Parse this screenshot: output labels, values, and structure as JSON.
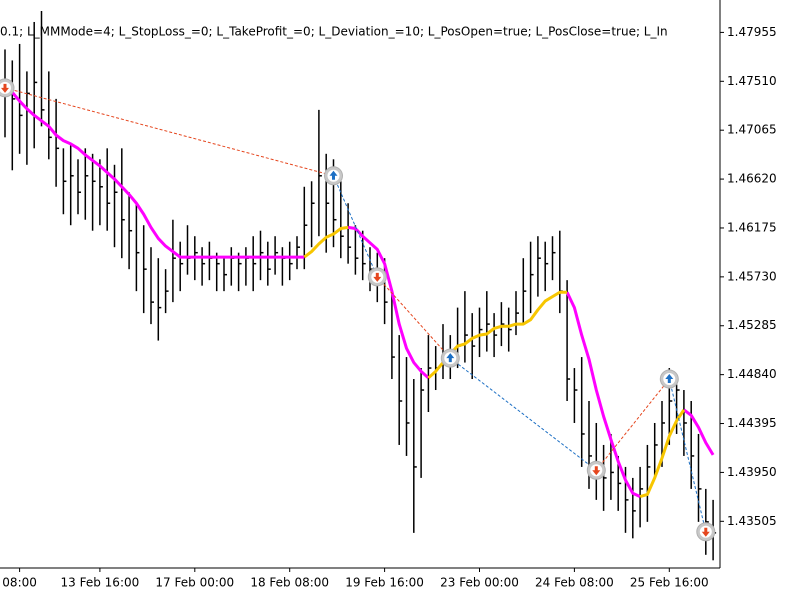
{
  "chart_data": {
    "type": "ohlc",
    "title": "0.1; L_MMMode=4; L_StopLoss_=0; L_TakeProfit_=0; L_Deviation_=10; L_PosOpen=true; L_PosClose=true; L_In",
    "bar_color": "#000000",
    "sell_color": "#e5461e",
    "buy_color": "#1c6fc4",
    "ylim": [
      1.4308,
      1.4825
    ],
    "yticks": [
      1.47955,
      {
        "value": 1.4751,
        "label": "1.47510"
      },
      1.47065,
      {
        "value": 1.4662,
        "label": "1.46620"
      },
      1.46175,
      {
        "value": 1.4573,
        "label": "1.45730"
      },
      1.45285,
      {
        "value": 1.4484,
        "label": "1.44840"
      },
      1.44395,
      {
        "value": 1.4395,
        "label": "1.43950"
      },
      1.43505
    ],
    "categories": [
      null,
      null,
      "08:00",
      null,
      null,
      null,
      null,
      null,
      null,
      null,
      null,
      null,
      null,
      "13 Feb 16:00",
      null,
      null,
      null,
      null,
      null,
      null,
      null,
      null,
      null,
      null,
      null,
      null,
      "17 Feb 00:00",
      null,
      null,
      null,
      null,
      null,
      null,
      null,
      null,
      null,
      null,
      null,
      null,
      "18 Feb 08:00",
      null,
      null,
      null,
      null,
      null,
      null,
      null,
      null,
      null,
      null,
      null,
      null,
      "19 Feb 16:00",
      null,
      null,
      null,
      null,
      null,
      null,
      null,
      null,
      null,
      null,
      null,
      null,
      "23 Feb 00:00",
      null,
      null,
      null,
      null,
      null,
      null,
      null,
      null,
      null,
      null,
      null,
      null,
      "24 Feb 08:00",
      null,
      null,
      null,
      null,
      null,
      null,
      null,
      null,
      null,
      null,
      null,
      null,
      "25 Feb 16:00",
      null,
      null,
      null,
      null,
      null,
      null
    ],
    "high": [
      1.478,
      1.477,
      1.4785,
      1.476,
      1.4805,
      1.4815,
      1.476,
      1.4735,
      1.469,
      1.4695,
      1.468,
      1.469,
      1.4685,
      1.468,
      1.469,
      1.4675,
      1.469,
      1.465,
      1.464,
      1.462,
      1.46,
      1.459,
      1.458,
      1.4625,
      1.4605,
      1.462,
      1.461,
      1.46,
      1.4605,
      1.4595,
      1.459,
      1.46,
      1.4595,
      1.46,
      1.461,
      1.4615,
      1.4605,
      1.461,
      1.46,
      1.4605,
      1.461,
      1.4655,
      1.466,
      1.4725,
      1.4685,
      1.468,
      1.466,
      1.464,
      1.462,
      1.4615,
      1.46,
      1.4595,
      1.459,
      1.456,
      1.452,
      1.45,
      1.448,
      1.449,
      1.452,
      1.451,
      1.453,
      1.452,
      1.4545,
      1.456,
      1.454,
      1.4545,
      1.456,
      1.454,
      1.455,
      1.4545,
      1.456,
      1.459,
      1.4605,
      1.461,
      1.4605,
      1.461,
      1.4615,
      1.457,
      1.449,
      1.45,
      1.446,
      1.444,
      1.442,
      1.443,
      1.441,
      1.44,
      1.439,
      1.44,
      1.442,
      1.444,
      1.446,
      1.449,
      1.4475,
      1.447,
      1.446,
      1.443,
      1.438,
      1.437
    ],
    "low": [
      1.47,
      1.467,
      1.4685,
      1.4675,
      1.469,
      1.471,
      1.468,
      1.4655,
      1.463,
      1.462,
      1.463,
      1.4625,
      1.4615,
      1.462,
      1.4615,
      1.46,
      1.459,
      1.458,
      1.456,
      1.454,
      1.453,
      1.4515,
      1.454,
      1.455,
      1.456,
      1.4575,
      1.457,
      1.4565,
      1.457,
      1.456,
      1.456,
      1.4565,
      1.456,
      1.4565,
      1.456,
      1.457,
      1.4565,
      1.4575,
      1.4565,
      1.457,
      1.458,
      1.458,
      1.46,
      1.461,
      1.4595,
      1.46,
      1.459,
      1.4585,
      1.4575,
      1.457,
      1.456,
      1.455,
      1.453,
      1.448,
      1.442,
      1.441,
      1.434,
      1.439,
      1.445,
      1.447,
      1.448,
      1.448,
      1.449,
      1.4495,
      1.448,
      1.45,
      1.4505,
      1.45,
      1.451,
      1.4505,
      1.452,
      1.453,
      1.454,
      1.4555,
      1.456,
      1.457,
      1.454,
      1.446,
      1.444,
      1.44,
      1.438,
      1.437,
      1.436,
      1.437,
      1.436,
      1.434,
      1.4335,
      1.4345,
      1.435,
      1.439,
      1.44,
      1.442,
      1.443,
      1.441,
      1.438,
      1.435,
      1.432,
      1.4315
    ],
    "close": [
      1.4745,
      1.4735,
      1.472,
      1.474,
      1.475,
      1.4725,
      1.47,
      1.469,
      1.466,
      1.4665,
      1.465,
      1.4665,
      1.466,
      1.4655,
      1.464,
      1.465,
      1.4625,
      1.4615,
      1.4595,
      1.458,
      1.455,
      1.4545,
      1.456,
      1.459,
      1.4585,
      1.459,
      1.4595,
      1.4585,
      1.459,
      1.4585,
      1.4575,
      1.459,
      1.4585,
      1.459,
      1.4585,
      1.4595,
      1.458,
      1.4595,
      1.459,
      1.4585,
      1.46,
      1.462,
      1.464,
      1.4665,
      1.464,
      1.4625,
      1.461,
      1.46,
      1.459,
      1.4585,
      1.458,
      1.4575,
      1.455,
      1.45,
      1.446,
      1.444,
      1.44,
      1.447,
      1.449,
      1.449,
      1.45,
      1.4505,
      1.451,
      1.452,
      1.451,
      1.4525,
      1.453,
      1.452,
      1.453,
      1.4525,
      1.454,
      1.456,
      1.4575,
      1.459,
      1.4585,
      1.4595,
      1.456,
      1.448,
      1.447,
      1.443,
      1.441,
      1.44,
      1.439,
      1.4395,
      1.4385,
      1.437,
      1.436,
      1.438,
      1.44,
      1.442,
      1.444,
      1.446,
      1.447,
      1.444,
      1.441,
      1.438,
      1.435,
      1.434
    ],
    "series": [
      {
        "color": "#ff00ff",
        "values": [
          1.4748,
          1.4741,
          1.4733,
          1.4726,
          1.472,
          1.4715,
          1.471,
          1.4702,
          1.4697,
          1.4694,
          1.469,
          1.4684,
          1.4679,
          1.4674,
          1.4668,
          1.4662,
          1.4655,
          1.4648,
          1.464,
          1.463,
          1.4618,
          1.4608,
          1.4601,
          1.4596,
          1.4591,
          1.4591,
          1.4591,
          1.4591,
          1.4591,
          1.4591,
          1.4591,
          1.4591,
          1.4591,
          1.4591,
          1.4591,
          1.4591,
          1.4591,
          1.4591,
          1.4591,
          1.4591,
          1.4591,
          1.4591,
          null,
          null,
          null,
          null,
          null,
          1.4618,
          1.4617,
          1.461,
          1.4604,
          1.4598,
          1.4585,
          1.456,
          1.453,
          1.4508,
          1.4495,
          1.4487,
          1.4481,
          null,
          null,
          null,
          null,
          null,
          null,
          null,
          null,
          null,
          null,
          null,
          null,
          null,
          null,
          null,
          null,
          null,
          null,
          1.4559,
          1.4545,
          1.452,
          1.4498,
          1.447,
          1.4446,
          1.4425,
          1.4405,
          1.4388,
          1.4376,
          1.4373,
          null,
          null,
          null,
          null,
          null,
          1.4452,
          1.4447,
          1.4436,
          1.4422,
          1.4411
        ]
      },
      {
        "color": "#f7c600",
        "values": [
          null,
          null,
          null,
          null,
          null,
          null,
          null,
          null,
          null,
          null,
          null,
          null,
          null,
          null,
          null,
          null,
          null,
          null,
          null,
          null,
          null,
          null,
          null,
          null,
          null,
          null,
          null,
          null,
          null,
          null,
          null,
          null,
          null,
          null,
          null,
          null,
          null,
          null,
          null,
          null,
          null,
          1.4591,
          1.4596,
          1.4603,
          1.4609,
          1.4612,
          1.4617,
          1.4618,
          null,
          null,
          null,
          null,
          null,
          null,
          null,
          null,
          null,
          null,
          1.4481,
          1.4487,
          1.4495,
          1.4503,
          1.451,
          1.4512,
          1.4517,
          1.452,
          1.4521,
          1.4526,
          1.4528,
          1.4528,
          1.453,
          1.453,
          1.4534,
          1.4543,
          1.4551,
          1.4555,
          1.4559,
          1.4559,
          null,
          null,
          null,
          null,
          null,
          null,
          null,
          null,
          null,
          1.4373,
          1.4375,
          1.439,
          1.4408,
          1.4428,
          1.4442,
          1.4452,
          null,
          null,
          null,
          null
        ]
      }
    ],
    "deals": [
      {
        "bar": 0,
        "price": 1.4745,
        "type": "sell"
      },
      {
        "bar": 45,
        "price": 1.4665,
        "type": "buy"
      },
      {
        "bar": 51,
        "price": 1.4573,
        "type": "sell"
      },
      {
        "bar": 61,
        "price": 1.4499,
        "type": "buy"
      },
      {
        "bar": 81,
        "price": 1.4397,
        "type": "sell"
      },
      {
        "bar": 91,
        "price": 1.448,
        "type": "buy"
      },
      {
        "bar": 96,
        "price": 1.4341,
        "type": "sell"
      }
    ]
  }
}
